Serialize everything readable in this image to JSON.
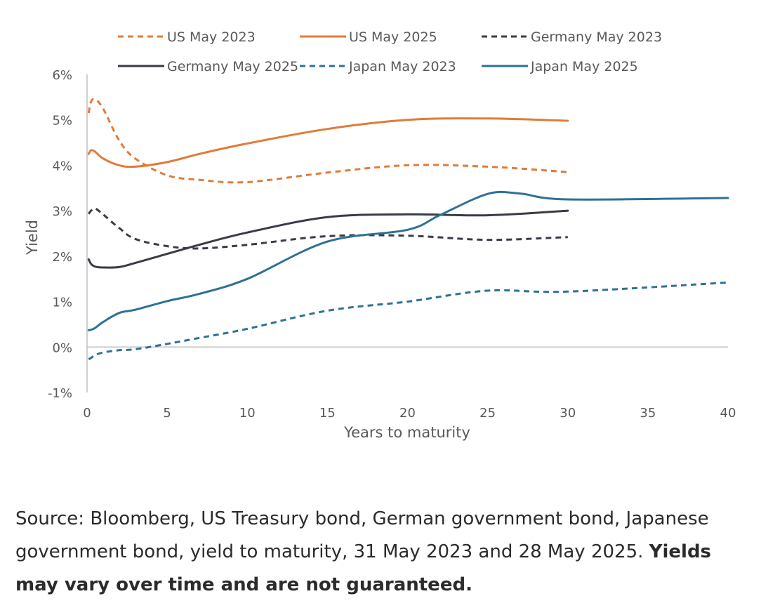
{
  "chart_data": {
    "type": "line",
    "xlabel": "Years to maturity",
    "ylabel": "Yield",
    "xlim": [
      0,
      40
    ],
    "ylim": [
      -1,
      6
    ],
    "x_ticks": [
      0,
      5,
      10,
      15,
      20,
      25,
      30,
      35,
      40
    ],
    "y_ticks": [
      -1,
      0,
      1,
      2,
      3,
      4,
      5,
      6
    ],
    "x_tick_labels": [
      "0",
      "5",
      "10",
      "15",
      "20",
      "25",
      "30",
      "35",
      "40"
    ],
    "y_tick_labels": [
      "-1%",
      "0%",
      "1%",
      "2%",
      "3%",
      "4%",
      "5%",
      "6%"
    ],
    "grid": false,
    "legend_position": "top",
    "series": [
      {
        "name": "US May 2023",
        "color": "#e07b39",
        "dash": true,
        "x": [
          0.1,
          0.25,
          0.5,
          1,
          2,
          3,
          5,
          7,
          10,
          15,
          20,
          25,
          30
        ],
        "y": [
          5.15,
          5.4,
          5.45,
          5.25,
          4.55,
          4.15,
          3.78,
          3.68,
          3.63,
          3.84,
          4.0,
          3.97,
          3.85
        ]
      },
      {
        "name": "US May 2025",
        "color": "#e07b39",
        "dash": false,
        "x": [
          0.1,
          0.25,
          0.5,
          1,
          2,
          3,
          5,
          7,
          10,
          15,
          20,
          25,
          30
        ],
        "y": [
          4.25,
          4.33,
          4.3,
          4.15,
          4.0,
          3.97,
          4.07,
          4.25,
          4.48,
          4.8,
          5.0,
          5.03,
          4.98
        ]
      },
      {
        "name": "Germany May 2023",
        "color": "#3a3b47",
        "dash": true,
        "x": [
          0.1,
          0.25,
          0.5,
          1,
          2,
          3,
          5,
          7,
          10,
          15,
          20,
          25,
          30
        ],
        "y": [
          2.93,
          3.0,
          3.05,
          2.92,
          2.62,
          2.38,
          2.22,
          2.17,
          2.25,
          2.44,
          2.45,
          2.36,
          2.42
        ]
      },
      {
        "name": "Germany May 2025",
        "color": "#3a3b47",
        "dash": false,
        "x": [
          0.1,
          0.25,
          0.5,
          1,
          2,
          3,
          5,
          7,
          10,
          15,
          20,
          25,
          30
        ],
        "y": [
          1.93,
          1.83,
          1.77,
          1.75,
          1.76,
          1.85,
          2.05,
          2.25,
          2.52,
          2.86,
          2.92,
          2.9,
          3.0
        ]
      },
      {
        "name": "Japan May 2023",
        "color": "#2e7197",
        "dash": true,
        "x": [
          0.1,
          0.25,
          0.5,
          1,
          2,
          3,
          5,
          7,
          10,
          15,
          20,
          25,
          30,
          40
        ],
        "y": [
          -0.27,
          -0.24,
          -0.18,
          -0.12,
          -0.07,
          -0.05,
          0.07,
          0.2,
          0.4,
          0.8,
          1.0,
          1.24,
          1.22,
          1.42
        ]
      },
      {
        "name": "Japan May 2025",
        "color": "#2e7197",
        "dash": false,
        "x": [
          0.1,
          0.25,
          0.5,
          1,
          2,
          3,
          5,
          7,
          10,
          15,
          20,
          22,
          25,
          27,
          30,
          40
        ],
        "y": [
          0.37,
          0.38,
          0.42,
          0.55,
          0.75,
          0.82,
          1.01,
          1.17,
          1.5,
          2.32,
          2.58,
          2.9,
          3.37,
          3.38,
          3.25,
          3.28
        ]
      }
    ]
  },
  "source_note": {
    "text": "Source: Bloomberg, US Treasury bond, German government bond, Japanese government bond, yield to maturity, 31 May 2023 and 28 May 2025. ",
    "bold": "Yields may vary over time and are not guaranteed."
  }
}
